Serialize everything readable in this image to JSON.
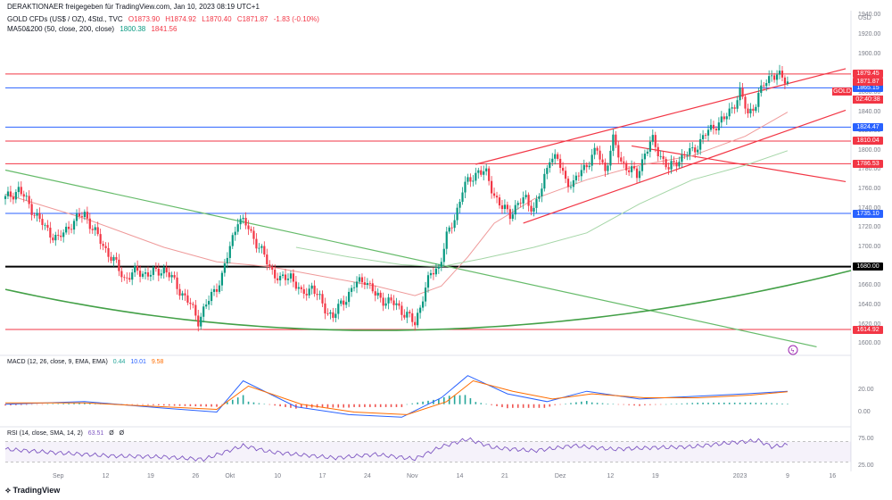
{
  "header": {
    "publisher": "DERAKTIONAER freigegeben für TradingView.com, Jan 10, 2023 08:19 UTC+1",
    "symbol": "GOLD CFDs (US$ / OZ), 4Std., TVC",
    "ohlc": [
      "O1873.90",
      "H1874.92",
      "L1870.40",
      "C1871.87",
      "-1.83 (-0.10%)"
    ],
    "ma_label": "MA50&200 (50, close, 200, close)",
    "ma_values": [
      "1800.38",
      "1841.56"
    ],
    "currency": "USD"
  },
  "macd_panel": {
    "title": "MACD (12, 26, close, 9, EMA, EMA)",
    "values": [
      "0.44",
      "10.01",
      "9.58"
    ],
    "axis": [
      "20.00",
      "0.00"
    ]
  },
  "rsi_panel": {
    "title": "RSI (14, close, SMA, 14, 2)",
    "values": [
      "63.51",
      "Ø",
      "Ø"
    ],
    "axis": [
      "75.00",
      "25.00"
    ]
  },
  "logo": "TradingView",
  "symbol_tag": "GOLD",
  "countdown": "02:40:38",
  "colors": {
    "red": "#f23645",
    "blue": "#2962ff",
    "black": "#000000",
    "green": "#089981",
    "ma50": "#ef9a9a",
    "ma200": "#a5d6a7",
    "macd": "#2962ff",
    "signal": "#ff6d00",
    "rsi": "#7e57c2"
  },
  "chart_data": {
    "type": "candlestick",
    "title": "GOLD CFDs (US$ / OZ), 4Std., TVC",
    "ylim": [
      1590,
      1945
    ],
    "y_ticks": [
      1600,
      1620,
      1640,
      1660,
      1680,
      1700,
      1720,
      1740,
      1760,
      1780,
      1800,
      1820,
      1840,
      1860,
      1880,
      1900,
      1920,
      1940
    ],
    "x_ticks": [
      "Sep",
      "12",
      "19",
      "26",
      "Okt",
      "10",
      "17",
      "24",
      "Nov",
      "14",
      "21",
      "Dez",
      "12",
      "19",
      "2023",
      "9",
      "16"
    ],
    "horizontal_levels": [
      {
        "value": 1879.45,
        "color": "#f23645"
      },
      {
        "value": 1871.87,
        "color": "#f23645"
      },
      {
        "value": 1865.15,
        "color": "#2962ff"
      },
      {
        "value": 1824.47,
        "color": "#2962ff"
      },
      {
        "value": 1810.04,
        "color": "#f23645"
      },
      {
        "value": 1786.53,
        "color": "#f23645"
      },
      {
        "value": 1735.1,
        "color": "#2962ff"
      },
      {
        "value": 1680.0,
        "color": "#000000"
      },
      {
        "value": 1614.92,
        "color": "#f23645"
      }
    ],
    "close_path": [
      [
        0,
        1750
      ],
      [
        5,
        1760
      ],
      [
        10,
        1740
      ],
      [
        15,
        1720
      ],
      [
        20,
        1708
      ],
      [
        25,
        1725
      ],
      [
        30,
        1735
      ],
      [
        35,
        1710
      ],
      [
        40,
        1690
      ],
      [
        45,
        1668
      ],
      [
        50,
        1675
      ],
      [
        55,
        1672
      ],
      [
        60,
        1678
      ],
      [
        65,
        1660
      ],
      [
        70,
        1640
      ],
      [
        73,
        1625
      ],
      [
        78,
        1650
      ],
      [
        82,
        1670
      ],
      [
        85,
        1700
      ],
      [
        88,
        1730
      ],
      [
        92,
        1720
      ],
      [
        96,
        1700
      ],
      [
        100,
        1680
      ],
      [
        104,
        1665
      ],
      [
        108,
        1672
      ],
      [
        112,
        1650
      ],
      [
        116,
        1660
      ],
      [
        120,
        1640
      ],
      [
        124,
        1628
      ],
      [
        128,
        1645
      ],
      [
        132,
        1660
      ],
      [
        136,
        1668
      ],
      [
        140,
        1650
      ],
      [
        144,
        1645
      ],
      [
        148,
        1640
      ],
      [
        152,
        1630
      ],
      [
        155,
        1620
      ],
      [
        158,
        1650
      ],
      [
        161,
        1672
      ],
      [
        164,
        1680
      ],
      [
        167,
        1710
      ],
      [
        170,
        1730
      ],
      [
        173,
        1760
      ],
      [
        176,
        1770
      ],
      [
        179,
        1780
      ],
      [
        182,
        1775
      ],
      [
        185,
        1755
      ],
      [
        188,
        1740
      ],
      [
        191,
        1735
      ],
      [
        194,
        1745
      ],
      [
        197,
        1750
      ],
      [
        200,
        1740
      ],
      [
        203,
        1760
      ],
      [
        206,
        1795
      ],
      [
        209,
        1790
      ],
      [
        212,
        1770
      ],
      [
        215,
        1765
      ],
      [
        218,
        1780
      ],
      [
        221,
        1790
      ],
      [
        224,
        1800
      ],
      [
        227,
        1780
      ],
      [
        230,
        1810
      ],
      [
        233,
        1790
      ],
      [
        236,
        1780
      ],
      [
        239,
        1775
      ],
      [
        242,
        1798
      ],
      [
        245,
        1810
      ],
      [
        248,
        1795
      ],
      [
        251,
        1780
      ],
      [
        254,
        1790
      ],
      [
        257,
        1795
      ],
      [
        260,
        1800
      ],
      [
        263,
        1810
      ],
      [
        266,
        1820
      ],
      [
        269,
        1828
      ],
      [
        272,
        1832
      ],
      [
        275,
        1845
      ],
      [
        278,
        1860
      ],
      [
        281,
        1838
      ],
      [
        284,
        1850
      ],
      [
        287,
        1868
      ],
      [
        290,
        1880
      ],
      [
        293,
        1876
      ],
      [
        296,
        1872
      ]
    ],
    "ma50": [
      [
        0,
        1755
      ],
      [
        30,
        1730
      ],
      [
        60,
        1700
      ],
      [
        80,
        1685
      ],
      [
        100,
        1680
      ],
      [
        120,
        1670
      ],
      [
        140,
        1660
      ],
      [
        155,
        1650
      ],
      [
        165,
        1660
      ],
      [
        175,
        1690
      ],
      [
        185,
        1725
      ],
      [
        200,
        1750
      ],
      [
        220,
        1770
      ],
      [
        240,
        1785
      ],
      [
        260,
        1795
      ],
      [
        280,
        1815
      ],
      [
        296,
        1840
      ]
    ],
    "ma200": [
      [
        110,
        1700
      ],
      [
        130,
        1690
      ],
      [
        150,
        1682
      ],
      [
        165,
        1680
      ],
      [
        180,
        1688
      ],
      [
        200,
        1700
      ],
      [
        220,
        1715
      ],
      [
        240,
        1745
      ],
      [
        260,
        1770
      ],
      [
        280,
        1785
      ],
      [
        296,
        1800
      ]
    ],
    "trendlines": [
      {
        "from": [
          178,
          1786
        ],
        "to": [
          318,
          1885
        ],
        "color": "#f23645"
      },
      {
        "from": [
          196,
          1725
        ],
        "to": [
          318,
          1842
        ],
        "color": "#f23645"
      },
      {
        "from": [
          237,
          1805
        ],
        "to": [
          318,
          1768
        ],
        "color": "#f23645"
      },
      {
        "from": [
          0,
          1780
        ],
        "to": [
          307,
          1597
        ],
        "color": "#66bb6a"
      },
      {
        "from": [
          75,
          1614.9
        ],
        "to": [
          155,
          1614.9
        ],
        "color": "#f23645"
      }
    ],
    "macd": {
      "axis": [
        20,
        0
      ],
      "macd_line": [
        [
          0,
          0
        ],
        [
          30,
          2
        ],
        [
          60,
          -3
        ],
        [
          80,
          -6
        ],
        [
          90,
          18
        ],
        [
          110,
          -2
        ],
        [
          130,
          -8
        ],
        [
          150,
          -10
        ],
        [
          165,
          5
        ],
        [
          175,
          22
        ],
        [
          190,
          8
        ],
        [
          205,
          2
        ],
        [
          220,
          10
        ],
        [
          240,
          4
        ],
        [
          260,
          6
        ],
        [
          280,
          8
        ],
        [
          296,
          10
        ]
      ],
      "signal_line": [
        [
          0,
          1
        ],
        [
          30,
          1
        ],
        [
          60,
          -2
        ],
        [
          80,
          -4
        ],
        [
          92,
          14
        ],
        [
          112,
          0
        ],
        [
          132,
          -6
        ],
        [
          152,
          -8
        ],
        [
          167,
          2
        ],
        [
          177,
          18
        ],
        [
          192,
          10
        ],
        [
          207,
          4
        ],
        [
          222,
          8
        ],
        [
          242,
          5
        ],
        [
          262,
          5
        ],
        [
          282,
          7
        ],
        [
          296,
          9.58
        ]
      ]
    },
    "rsi": {
      "axis": [
        75,
        25
      ],
      "band": [
        70,
        30
      ],
      "line": [
        [
          0,
          55
        ],
        [
          20,
          48
        ],
        [
          40,
          42
        ],
        [
          60,
          40
        ],
        [
          75,
          35
        ],
        [
          90,
          62
        ],
        [
          100,
          50
        ],
        [
          110,
          45
        ],
        [
          125,
          38
        ],
        [
          140,
          45
        ],
        [
          155,
          36
        ],
        [
          165,
          60
        ],
        [
          175,
          75
        ],
        [
          185,
          58
        ],
        [
          200,
          52
        ],
        [
          215,
          62
        ],
        [
          230,
          55
        ],
        [
          245,
          58
        ],
        [
          260,
          60
        ],
        [
          275,
          68
        ],
        [
          285,
          72
        ],
        [
          290,
          60
        ],
        [
          296,
          63.51
        ]
      ]
    }
  }
}
